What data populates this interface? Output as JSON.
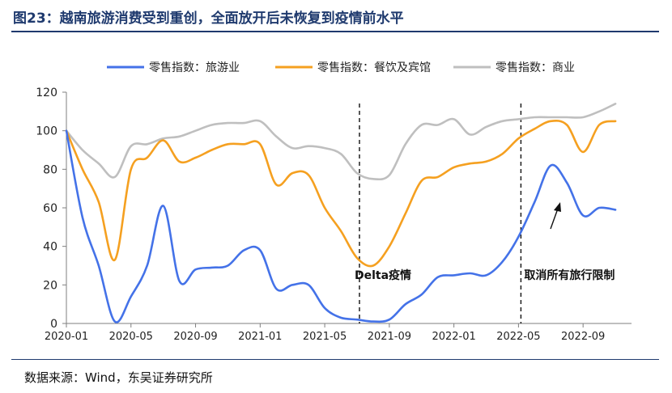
{
  "title": "图23：越南旅游消费受到重创，全面放开后未恢复到疫情前水平",
  "source": "数据来源：Wind，东吴证券研究所",
  "chart_data": {
    "type": "line",
    "title": "图23：越南旅游消费受到重创，全面放开后未恢复到疫情前水平",
    "xlabel": "",
    "ylabel": "",
    "ylim": [
      0,
      120
    ],
    "yticks": [
      0,
      20,
      40,
      60,
      80,
      100,
      120
    ],
    "xlim": [
      "2020-01",
      "2022-12"
    ],
    "x_tick_labels": [
      "2020-01",
      "2020-05",
      "2020-09",
      "2021-01",
      "2021-05",
      "2021-09",
      "2022-01",
      "2022-05",
      "2022-09"
    ],
    "legend_position": "top",
    "grid": false,
    "x": [
      "2020-01",
      "2020-02",
      "2020-03",
      "2020-04",
      "2020-05",
      "2020-06",
      "2020-07",
      "2020-08",
      "2020-09",
      "2020-10",
      "2020-11",
      "2020-12",
      "2021-01",
      "2021-02",
      "2021-03",
      "2021-04",
      "2021-05",
      "2021-06",
      "2021-07",
      "2021-08",
      "2021-09",
      "2021-10",
      "2021-11",
      "2021-12",
      "2022-01",
      "2022-02",
      "2022-03",
      "2022-04",
      "2022-05",
      "2022-06",
      "2022-07",
      "2022-08",
      "2022-09",
      "2022-10",
      "2022-11"
    ],
    "series": [
      {
        "name": "零售指数：旅游业",
        "color": "#4472e8",
        "values": [
          100,
          55,
          30,
          1,
          14,
          30,
          61,
          22,
          28,
          29,
          30,
          38,
          38,
          18,
          20,
          20,
          8,
          3,
          2,
          1,
          2,
          10,
          15,
          24,
          25,
          26,
          25,
          32,
          45,
          63,
          82,
          73,
          56,
          60,
          59
        ]
      },
      {
        "name": "零售指数：餐饮及宾馆",
        "color": "#f5a020",
        "values": [
          100,
          80,
          63,
          33,
          80,
          86,
          95,
          84,
          86,
          90,
          93,
          93,
          93,
          72,
          78,
          77,
          60,
          48,
          34,
          30,
          40,
          57,
          74,
          76,
          81,
          83,
          84,
          88,
          96,
          101,
          105,
          103,
          89,
          103,
          105
        ]
      },
      {
        "name": "零售指数：商业",
        "color": "#bfbfbf",
        "values": [
          100,
          90,
          83,
          76,
          92,
          93,
          96,
          97,
          100,
          103,
          104,
          104,
          105,
          97,
          91,
          92,
          91,
          88,
          78,
          75,
          77,
          93,
          103,
          103,
          106,
          98,
          102,
          105,
          106,
          107,
          107,
          107,
          107,
          110,
          114
        ]
      }
    ],
    "annotations": [
      {
        "text": "Delta疫情",
        "x": "2021-07",
        "y": 24
      },
      {
        "text": "取消所有旅行限制",
        "x": "2022-05",
        "y": 24
      }
    ],
    "vlines": [
      "2021-07",
      "2022-05"
    ]
  }
}
